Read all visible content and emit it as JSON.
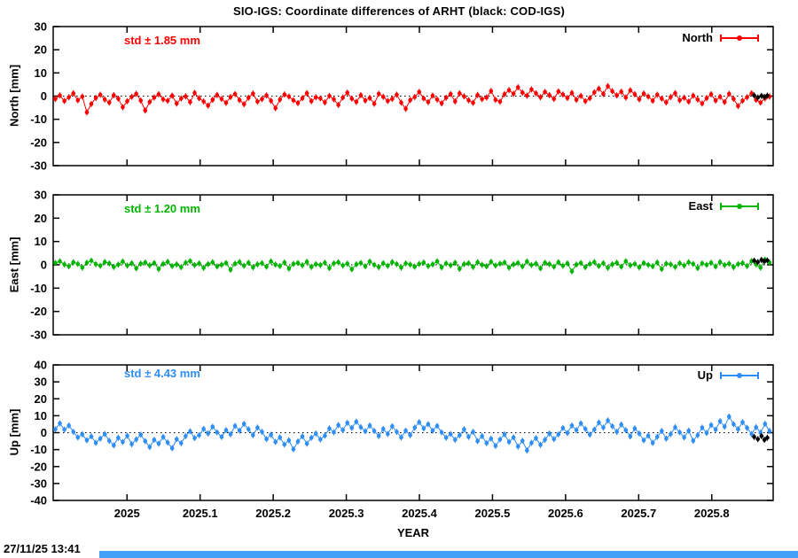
{
  "title": "SIO-IGS: Coordinate differences of ARHT (black: COD-IGS)",
  "timestamp": "27/11/25 13:41",
  "scrollbar": {
    "color": "#44a1f8"
  },
  "chart_data": {
    "type": "scatter",
    "title": "SIO-IGS: Coordinate differences of ARHT (black: COD-IGS)",
    "xlabel": "YEAR",
    "black_series_label": "COD-IGS",
    "xlim": [
      2024.899,
      2025.884
    ],
    "x_start": 2024.902,
    "x_end": 2025.879,
    "xticks": [
      2025.0,
      2025.1,
      2025.2,
      2025.3,
      2025.4,
      2025.5,
      2025.6,
      2025.7,
      2025.8
    ],
    "xtick_labels": [
      "2025",
      "2025.1",
      "2025.2",
      "2025.3",
      "2025.4",
      "2025.5",
      "2025.6",
      "2025.7",
      "2025.8"
    ],
    "grid": "zero-line-dotted",
    "legend_position": "top-right-inside",
    "panels": [
      {
        "name": "North",
        "ylabel": "North [mm]",
        "std_label": "std ± 1.85 mm",
        "std_mm": 1.85,
        "legend": "North",
        "color": "#ff0000",
        "ylim": [
          -30,
          30
        ],
        "yticks": [
          30,
          20,
          10,
          0,
          -10,
          -20,
          -30
        ],
        "values": [
          -1.2,
          0.3,
          -2.1,
          -0.5,
          1.2,
          -1.8,
          -0.2,
          -7.0,
          -3.4,
          -0.8,
          0.6,
          -1.5,
          -2.8,
          0.4,
          -1.1,
          -4.8,
          -2.2,
          -0.3,
          1.0,
          -1.9,
          -6.2,
          -2.5,
          -0.6,
          0.8,
          -1.4,
          -2.0,
          0.2,
          -3.2,
          -1.0,
          -0.1,
          -2.6,
          1.4,
          -0.9,
          -2.3,
          -4.1,
          -1.6,
          0.5,
          -1.2,
          -2.9,
          -0.4,
          0.9,
          -1.7,
          -3.5,
          -0.7,
          1.1,
          -2.4,
          -1.3,
          0.3,
          -2.0,
          -5.2,
          -1.5,
          0.7,
          -0.2,
          -1.8,
          -3.0,
          -0.9,
          1.3,
          -2.2,
          -0.5,
          -1.0,
          -2.7,
          0.1,
          -1.4,
          -3.8,
          -0.6,
          1.5,
          -1.1,
          -2.5,
          0.4,
          -1.9,
          -0.8,
          -3.3,
          1.0,
          -0.3,
          -2.1,
          -1.2,
          0.6,
          -2.8,
          -5.5,
          -1.7,
          -0.4,
          1.8,
          -1.0,
          -2.6,
          0.2,
          -1.5,
          -3.1,
          -0.7,
          0.9,
          -2.3,
          1.2,
          -0.1,
          -1.8,
          -2.9,
          0.5,
          -1.3,
          -0.6,
          2.2,
          -1.6,
          -2.4,
          0.8,
          2.6,
          1.0,
          3.8,
          1.5,
          0.2,
          2.9,
          1.2,
          -0.5,
          1.8,
          0.4,
          -1.2,
          2.0,
          0.7,
          -0.8,
          1.4,
          -1.6,
          0.1,
          -2.2,
          -0.9,
          1.6,
          3.2,
          0.9,
          4.3,
          2.1,
          0.3,
          1.9,
          -0.6,
          2.5,
          0.8,
          -1.4,
          1.1,
          -0.2,
          -2.0,
          0.6,
          -1.1,
          -2.7,
          -0.4,
          1.3,
          -1.8,
          -0.7,
          -2.4,
          0.2,
          -1.5,
          -3.2,
          -0.9,
          0.8,
          -1.9,
          -0.3,
          -2.6,
          1.0,
          -1.2,
          -4.3,
          -2.0,
          -0.5,
          1.2,
          -1.6,
          -2.8,
          -1.0,
          -0.2
        ],
        "cod": {
          "x": [
            2025.858,
            2025.863,
            2025.868,
            2025.872,
            2025.876
          ],
          "y": [
            0.3,
            -0.6,
            0.1,
            -0.4,
            0.2
          ]
        }
      },
      {
        "name": "East",
        "ylabel": "East [mm]",
        "std_label": "std ± 1.20 mm",
        "std_mm": 1.2,
        "legend": "East",
        "color": "#00b400",
        "ylim": [
          -30,
          30
        ],
        "yticks": [
          30,
          20,
          10,
          0,
          -10,
          -20,
          -30
        ],
        "values": [
          0.8,
          1.5,
          0.2,
          -0.6,
          1.1,
          0.4,
          -1.2,
          0.9,
          1.8,
          0.3,
          -0.4,
          1.2,
          0.6,
          -0.9,
          0.1,
          1.4,
          -0.3,
          0.7,
          -1.5,
          0.5,
          1.0,
          -0.2,
          0.8,
          -1.8,
          0.4,
          1.3,
          -0.5,
          0.2,
          -1.0,
          0.9,
          1.6,
          -0.1,
          0.6,
          -1.3,
          0.3,
          1.1,
          -0.7,
          0.0,
          0.8,
          -2.1,
          0.5,
          1.2,
          -0.4,
          0.9,
          -1.1,
          0.2,
          0.7,
          -0.8,
          1.5,
          0.1,
          -0.5,
          1.0,
          -1.6,
          0.4,
          0.8,
          -0.2,
          1.3,
          -0.9,
          0.3,
          -0.1,
          0.9,
          -1.4,
          0.6,
          1.1,
          -0.3,
          0.5,
          -1.9,
          0.2,
          0.8,
          -0.6,
          1.4,
          0.0,
          -1.0,
          0.7,
          -0.4,
          1.2,
          0.3,
          -1.2,
          0.6,
          0.1,
          -0.8,
          0.4,
          1.0,
          -0.5,
          0.2,
          1.5,
          -1.1,
          0.6,
          -0.2,
          0.9,
          -1.7,
          0.3,
          0.7,
          -0.9,
          1.1,
          0.0,
          -0.6,
          1.3,
          -0.3,
          0.5,
          1.0,
          -1.2,
          0.2,
          0.8,
          -0.7,
          1.4,
          -0.1,
          0.5,
          -1.5,
          0.9,
          0.3,
          -0.8,
          1.1,
          -0.4,
          0.6,
          -2.8,
          0.1,
          0.8,
          -1.0,
          0.4,
          1.2,
          -0.5,
          0.7,
          -1.3,
          0.2,
          0.9,
          -0.8,
          1.5,
          -0.2,
          0.4,
          -1.1,
          0.8,
          0.0,
          -0.6,
          1.0,
          -1.8,
          0.5,
          0.2,
          -0.9,
          0.7,
          -0.3,
          1.1,
          0.4,
          -1.4,
          0.6,
          0.0,
          0.9,
          -0.7,
          1.2,
          -0.1,
          0.5,
          -1.0,
          0.3,
          0.8,
          -0.5,
          1.6,
          0.2,
          -1.2,
          2.2,
          1.0
        ],
        "cod": {
          "x": [
            2025.858,
            2025.863,
            2025.868,
            2025.872,
            2025.876
          ],
          "y": [
            1.8,
            1.2,
            2.1,
            1.5,
            1.9
          ]
        }
      },
      {
        "name": "Up",
        "ylabel": "Up [mm]",
        "std_label": "std ± 4.43 mm",
        "std_mm": 4.43,
        "legend": "Up",
        "color": "#2e8ef5",
        "ylim": [
          -40,
          40
        ],
        "yticks": [
          40,
          30,
          20,
          10,
          0,
          -10,
          -20,
          -30,
          -40
        ],
        "values": [
          2.0,
          5.5,
          1.8,
          4.2,
          0.5,
          -2.8,
          -1.0,
          -4.5,
          -2.2,
          -6.0,
          -3.5,
          -0.8,
          -4.8,
          -7.5,
          -3.0,
          -5.5,
          -1.8,
          -6.8,
          -4.0,
          -1.2,
          -5.0,
          -8.5,
          -4.2,
          -6.5,
          -2.5,
          -5.8,
          -9.2,
          -3.8,
          -6.2,
          -2.0,
          0.8,
          -3.2,
          -1.5,
          2.2,
          -0.5,
          3.5,
          0.2,
          -2.5,
          1.5,
          -1.0,
          4.0,
          1.2,
          5.2,
          2.0,
          -1.5,
          3.0,
          0.5,
          -3.8,
          -1.2,
          -5.5,
          -2.8,
          -7.0,
          -4.5,
          -9.8,
          -5.2,
          -2.2,
          -6.5,
          -3.0,
          -0.5,
          -4.0,
          -1.8,
          2.5,
          0.2,
          4.5,
          1.5,
          5.8,
          2.8,
          6.5,
          3.2,
          0.8,
          4.2,
          1.0,
          -2.0,
          2.2,
          -0.8,
          3.8,
          0.5,
          -2.8,
          1.2,
          -1.5,
          3.0,
          6.2,
          2.5,
          5.0,
          1.2,
          4.0,
          0.2,
          -3.0,
          -0.8,
          -4.2,
          -1.5,
          2.0,
          -2.5,
          0.5,
          -5.0,
          -2.0,
          -6.2,
          -3.5,
          -7.8,
          -4.0,
          -1.0,
          -5.5,
          -2.8,
          -8.2,
          -4.8,
          -10.5,
          -6.0,
          -3.2,
          -7.2,
          -4.2,
          -0.5,
          -3.8,
          -1.0,
          2.8,
          -0.2,
          4.2,
          1.5,
          5.5,
          2.2,
          -1.2,
          1.8,
          6.0,
          3.0,
          7.2,
          3.8,
          0.5,
          4.8,
          1.5,
          -2.2,
          2.5,
          -0.5,
          -4.5,
          -1.8,
          -6.0,
          -2.5,
          1.0,
          -3.5,
          -0.8,
          3.2,
          0.2,
          -2.8,
          1.2,
          -4.8,
          -1.5,
          3.0,
          -0.2,
          4.5,
          1.8,
          6.8,
          3.5,
          9.5,
          5.0,
          2.0,
          6.2,
          2.8,
          -0.8,
          3.2,
          0.0,
          5.2,
          1.0
        ],
        "cod": {
          "x": [
            2025.858,
            2025.863,
            2025.868,
            2025.872,
            2025.876
          ],
          "y": [
            -2.5,
            -3.8,
            -2.0,
            -4.2,
            -3.0
          ]
        }
      }
    ]
  }
}
